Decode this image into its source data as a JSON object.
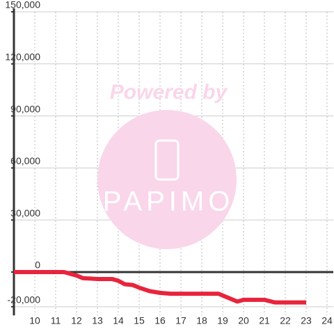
{
  "chart_data": {
    "type": "line",
    "watermark": [
      "Powered by",
      "PAPIMO"
    ],
    "x": [
      9,
      11.4,
      12,
      12.3,
      13,
      13.7,
      14,
      14.3,
      14.7,
      15,
      15.5,
      16,
      16.5,
      17,
      18,
      18.8,
      19.2,
      19.7,
      20,
      21,
      21.5,
      23
    ],
    "series": [
      {
        "color": "#e8243c",
        "values": [
          0,
          0,
          -2000,
          -3500,
          -4000,
          -4000,
          -5000,
          -7000,
          -7500,
          -9000,
          -11000,
          -12000,
          -12500,
          -12500,
          -12500,
          -12500,
          -14500,
          -17000,
          -16000,
          -16000,
          -17500,
          -17500
        ]
      }
    ],
    "xlim": [
      9,
      24.3
    ],
    "xticks": [
      10,
      11,
      12,
      13,
      14,
      15,
      16,
      17,
      18,
      19,
      20,
      21,
      22,
      23,
      24
    ],
    "ylim": [
      -25000,
      150000
    ],
    "yticks": [
      {
        "value": -20000,
        "label": "-20,000"
      },
      0,
      {
        "value": 30000,
        "label": "30,000"
      },
      {
        "value": 60000,
        "label": "60,000"
      },
      {
        "value": 90000,
        "label": "90,000"
      },
      {
        "value": 120000,
        "label": "120,000"
      },
      {
        "value": 150000,
        "label": "150,000"
      }
    ],
    "grid": true
  }
}
